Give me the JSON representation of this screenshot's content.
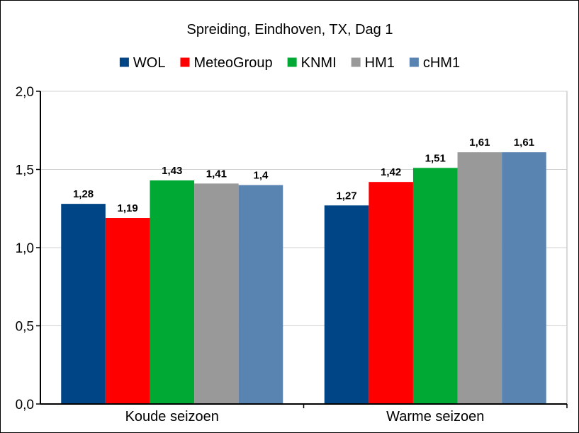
{
  "chart_data": {
    "type": "bar",
    "title": "Spreiding, Eindhoven, TX, Dag 1",
    "xlabel": "",
    "ylabel": "",
    "categories": [
      "Koude seizoen",
      "Warme seizoen"
    ],
    "series": [
      {
        "name": "WOL",
        "color": "#004586",
        "values": [
          1.28,
          1.27
        ],
        "labels": [
          "1,28",
          "1,27"
        ]
      },
      {
        "name": "MeteoGroup",
        "color": "#ff0000",
        "values": [
          1.19,
          1.42
        ],
        "labels": [
          "1,19",
          "1,42"
        ]
      },
      {
        "name": "KNMI",
        "color": "#00a933",
        "values": [
          1.43,
          1.51
        ],
        "labels": [
          "1,43",
          "1,51"
        ]
      },
      {
        "name": "HM1",
        "color": "#999999",
        "values": [
          1.41,
          1.61
        ],
        "labels": [
          "1,41",
          "1,61"
        ]
      },
      {
        "name": "cHM1",
        "color": "#5983b0",
        "values": [
          1.4,
          1.61
        ],
        "labels": [
          "1,4",
          "1,61"
        ]
      }
    ],
    "ylim": [
      0,
      2
    ],
    "yticks": [
      0,
      0.5,
      1,
      1.5,
      2
    ],
    "ytick_labels": [
      "0,0",
      "0,5",
      "1,0",
      "1,5",
      "2,0"
    ],
    "grid": true,
    "legend_position": "top"
  }
}
